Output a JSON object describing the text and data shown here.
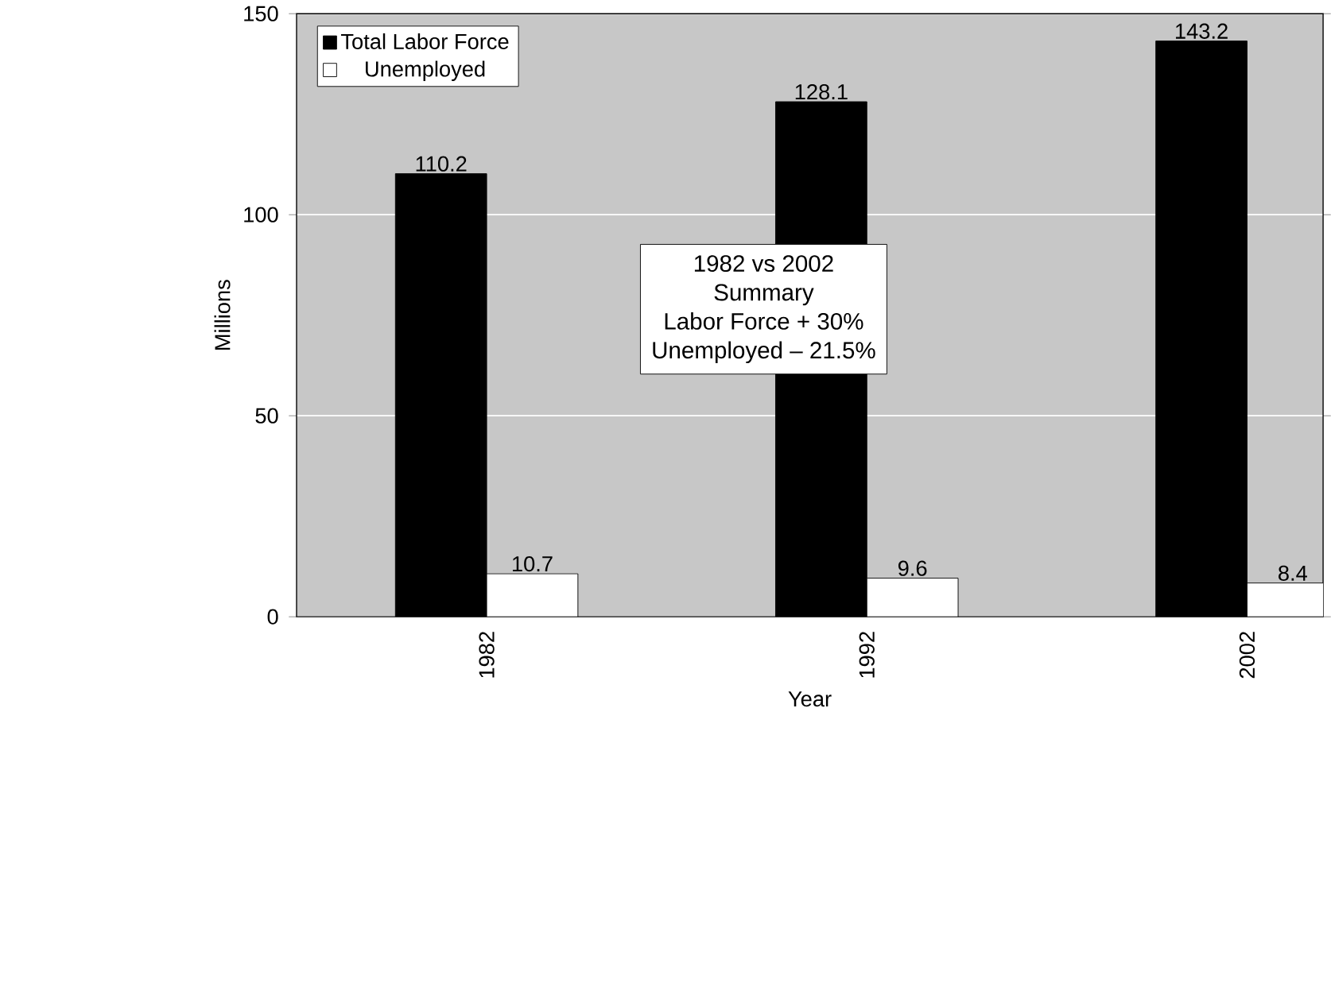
{
  "chart_data": {
    "type": "bar",
    "xlabel": "Year",
    "ylabel": "Millions",
    "categories": [
      "1982",
      "1992",
      "2002"
    ],
    "series": [
      {
        "name": "Total Labor Force",
        "color": "#000000",
        "values": [
          110.2,
          128.1,
          143.2
        ]
      },
      {
        "name": "Unemployed",
        "color": "#ffffff",
        "values": [
          10.7,
          9.6,
          8.4
        ]
      }
    ],
    "ylim": [
      0,
      150
    ],
    "yticks": [
      0,
      50,
      100,
      150
    ],
    "grid": "y",
    "legend": "top left",
    "data_labels": true,
    "annotations": [
      "1982 vs 2002",
      "Summary",
      "Labor Force + 30%",
      "Unemployed – 21.5%"
    ]
  }
}
